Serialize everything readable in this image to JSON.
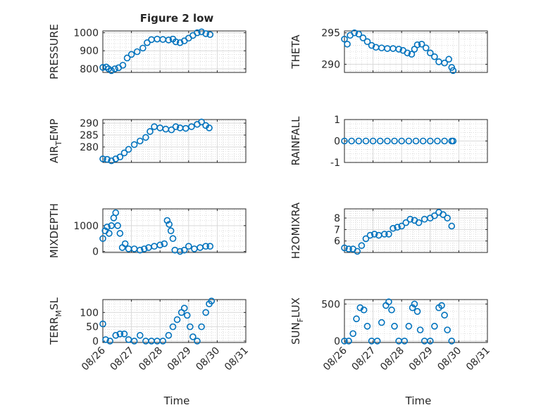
{
  "figure": {
    "title": "Figure 2 low",
    "xlabel": "Time",
    "x_tick_labels": [
      "08/26",
      "08/27",
      "08/28",
      "08/29",
      "08/30",
      "08/31"
    ]
  },
  "colors": {
    "series": "#0072BD",
    "axes": "#262626",
    "grid": "#d9d9d9"
  },
  "chart_data": [
    {
      "type": "scatter",
      "ylabel": "PRESSURE",
      "yticks": [
        800,
        900,
        1000
      ],
      "ylim": [
        780,
        1010
      ],
      "xlim": [
        0,
        5
      ],
      "points": [
        [
          0,
          808
        ],
        [
          0.12,
          810
        ],
        [
          0.2,
          800
        ],
        [
          0.3,
          790
        ],
        [
          0.42,
          800
        ],
        [
          0.55,
          806
        ],
        [
          0.7,
          820
        ],
        [
          0.85,
          860
        ],
        [
          1.0,
          880
        ],
        [
          1.2,
          895
        ],
        [
          1.4,
          915
        ],
        [
          1.55,
          945
        ],
        [
          1.7,
          962
        ],
        [
          1.9,
          965
        ],
        [
          2.1,
          963
        ],
        [
          2.3,
          960
        ],
        [
          2.45,
          965
        ],
        [
          2.55,
          950
        ],
        [
          2.7,
          945
        ],
        [
          2.85,
          955
        ],
        [
          3.0,
          970
        ],
        [
          3.15,
          985
        ],
        [
          3.3,
          1000
        ],
        [
          3.45,
          1005
        ],
        [
          3.6,
          995
        ],
        [
          3.75,
          990
        ]
      ]
    },
    {
      "type": "scatter",
      "ylabel": "THETA",
      "yticks": [
        290,
        295
      ],
      "ylim": [
        288.7,
        295.3
      ],
      "xlim": [
        0,
        5
      ],
      "points": [
        [
          0,
          294.0
        ],
        [
          0.1,
          293.2
        ],
        [
          0.2,
          294.6
        ],
        [
          0.35,
          295.0
        ],
        [
          0.5,
          294.8
        ],
        [
          0.65,
          294.2
        ],
        [
          0.8,
          293.6
        ],
        [
          0.95,
          293.0
        ],
        [
          1.1,
          292.7
        ],
        [
          1.3,
          292.6
        ],
        [
          1.5,
          292.5
        ],
        [
          1.7,
          292.5
        ],
        [
          1.9,
          292.4
        ],
        [
          2.05,
          292.2
        ],
        [
          2.2,
          291.8
        ],
        [
          2.35,
          291.6
        ],
        [
          2.45,
          292.4
        ],
        [
          2.55,
          293.1
        ],
        [
          2.7,
          293.2
        ],
        [
          2.85,
          292.6
        ],
        [
          3.0,
          291.8
        ],
        [
          3.15,
          291.2
        ],
        [
          3.3,
          290.4
        ],
        [
          3.5,
          290.2
        ],
        [
          3.65,
          290.8
        ],
        [
          3.75,
          289.5
        ],
        [
          3.8,
          289.0
        ]
      ]
    },
    {
      "type": "scatter",
      "ylabel": "AIR_TEMP",
      "yticks": [
        280,
        285,
        290
      ],
      "ylim": [
        273.5,
        291.5
      ],
      "xlim": [
        0,
        5
      ],
      "points": [
        [
          0,
          275.0
        ],
        [
          0.15,
          274.8
        ],
        [
          0.3,
          274.2
        ],
        [
          0.45,
          275.0
        ],
        [
          0.6,
          275.8
        ],
        [
          0.75,
          277.5
        ],
        [
          0.9,
          279.0
        ],
        [
          1.1,
          281.0
        ],
        [
          1.3,
          282.5
        ],
        [
          1.5,
          284.0
        ],
        [
          1.65,
          286.5
        ],
        [
          1.8,
          288.5
        ],
        [
          2.0,
          288.0
        ],
        [
          2.2,
          287.5
        ],
        [
          2.4,
          287.2
        ],
        [
          2.55,
          288.5
        ],
        [
          2.7,
          288.0
        ],
        [
          2.9,
          287.8
        ],
        [
          3.1,
          288.5
        ],
        [
          3.3,
          289.5
        ],
        [
          3.45,
          290.5
        ],
        [
          3.6,
          289.0
        ],
        [
          3.72,
          288.0
        ]
      ]
    },
    {
      "type": "scatter",
      "ylabel": "RAINFALL",
      "yticks": [
        -1,
        0,
        1
      ],
      "ylim": [
        -1,
        1
      ],
      "xlim": [
        0,
        5
      ],
      "points": [
        [
          0,
          0
        ],
        [
          0.25,
          0
        ],
        [
          0.5,
          0
        ],
        [
          0.75,
          0
        ],
        [
          1.0,
          0
        ],
        [
          1.25,
          0
        ],
        [
          1.5,
          0
        ],
        [
          1.75,
          0
        ],
        [
          2.0,
          0
        ],
        [
          2.25,
          0
        ],
        [
          2.5,
          0
        ],
        [
          2.75,
          0
        ],
        [
          3.0,
          0
        ],
        [
          3.25,
          0
        ],
        [
          3.5,
          0
        ],
        [
          3.75,
          0
        ],
        [
          3.8,
          0
        ]
      ]
    },
    {
      "type": "scatter",
      "ylabel": "MIXDEPTH",
      "yticks": [
        0,
        1000
      ],
      "ylim": [
        -40,
        1650
      ],
      "xlim": [
        0,
        5
      ],
      "points": [
        [
          0,
          500
        ],
        [
          0.08,
          800
        ],
        [
          0.15,
          950
        ],
        [
          0.22,
          700
        ],
        [
          0.3,
          1000
        ],
        [
          0.38,
          1300
        ],
        [
          0.45,
          1500
        ],
        [
          0.52,
          1000
        ],
        [
          0.6,
          700
        ],
        [
          0.68,
          150
        ],
        [
          0.78,
          300
        ],
        [
          0.9,
          100
        ],
        [
          1.1,
          100
        ],
        [
          1.3,
          50
        ],
        [
          1.45,
          100
        ],
        [
          1.6,
          150
        ],
        [
          1.8,
          200
        ],
        [
          2.0,
          250
        ],
        [
          2.15,
          300
        ],
        [
          2.25,
          1200
        ],
        [
          2.32,
          1050
        ],
        [
          2.38,
          800
        ],
        [
          2.45,
          500
        ],
        [
          2.52,
          50
        ],
        [
          2.7,
          0
        ],
        [
          2.85,
          50
        ],
        [
          3.0,
          200
        ],
        [
          3.2,
          100
        ],
        [
          3.4,
          150
        ],
        [
          3.6,
          200
        ],
        [
          3.75,
          200
        ]
      ]
    },
    {
      "type": "scatter",
      "ylabel": "H2OMIXRA",
      "yticks": [
        6,
        7,
        8
      ],
      "ylim": [
        5.0,
        8.8
      ],
      "xlim": [
        0,
        5
      ],
      "points": [
        [
          0,
          5.4
        ],
        [
          0.15,
          5.3
        ],
        [
          0.3,
          5.3
        ],
        [
          0.45,
          5.1
        ],
        [
          0.6,
          5.6
        ],
        [
          0.75,
          6.2
        ],
        [
          0.9,
          6.5
        ],
        [
          1.05,
          6.6
        ],
        [
          1.2,
          6.5
        ],
        [
          1.4,
          6.6
        ],
        [
          1.55,
          6.6
        ],
        [
          1.7,
          7.1
        ],
        [
          1.85,
          7.2
        ],
        [
          2.0,
          7.3
        ],
        [
          2.15,
          7.6
        ],
        [
          2.3,
          7.9
        ],
        [
          2.45,
          7.8
        ],
        [
          2.6,
          7.6
        ],
        [
          2.8,
          7.9
        ],
        [
          3.0,
          8.0
        ],
        [
          3.15,
          8.2
        ],
        [
          3.3,
          8.5
        ],
        [
          3.45,
          8.3
        ],
        [
          3.6,
          8.0
        ],
        [
          3.75,
          7.3
        ]
      ]
    },
    {
      "type": "scatter",
      "ylabel": "TERR_MSL",
      "yticks": [
        0,
        50,
        100
      ],
      "ylim": [
        -5,
        145
      ],
      "xlim": [
        0,
        5
      ],
      "points": [
        [
          0,
          60
        ],
        [
          0.1,
          5
        ],
        [
          0.25,
          0
        ],
        [
          0.45,
          20
        ],
        [
          0.6,
          25
        ],
        [
          0.75,
          25
        ],
        [
          0.9,
          5
        ],
        [
          1.1,
          0
        ],
        [
          1.3,
          20
        ],
        [
          1.5,
          0
        ],
        [
          1.7,
          0
        ],
        [
          1.9,
          0
        ],
        [
          2.1,
          0
        ],
        [
          2.3,
          20
        ],
        [
          2.45,
          50
        ],
        [
          2.6,
          75
        ],
        [
          2.75,
          100
        ],
        [
          2.85,
          115
        ],
        [
          2.95,
          90
        ],
        [
          3.05,
          50
        ],
        [
          3.15,
          15
        ],
        [
          3.3,
          0
        ],
        [
          3.45,
          50
        ],
        [
          3.6,
          100
        ],
        [
          3.72,
          130
        ],
        [
          3.8,
          140
        ]
      ]
    },
    {
      "type": "scatter",
      "ylabel": "SUN_FLUX",
      "yticks": [
        0,
        500
      ],
      "ylim": [
        -20,
        560
      ],
      "xlim": [
        0,
        5
      ],
      "points": [
        [
          0,
          0
        ],
        [
          0.15,
          0
        ],
        [
          0.3,
          100
        ],
        [
          0.42,
          300
        ],
        [
          0.55,
          450
        ],
        [
          0.68,
          420
        ],
        [
          0.8,
          200
        ],
        [
          0.95,
          0
        ],
        [
          1.15,
          0
        ],
        [
          1.3,
          250
        ],
        [
          1.45,
          480
        ],
        [
          1.55,
          530
        ],
        [
          1.65,
          420
        ],
        [
          1.75,
          200
        ],
        [
          1.9,
          0
        ],
        [
          2.1,
          0
        ],
        [
          2.25,
          200
        ],
        [
          2.38,
          450
        ],
        [
          2.45,
          500
        ],
        [
          2.55,
          400
        ],
        [
          2.65,
          150
        ],
        [
          2.8,
          0
        ],
        [
          3.0,
          0
        ],
        [
          3.15,
          200
        ],
        [
          3.3,
          450
        ],
        [
          3.4,
          480
        ],
        [
          3.5,
          350
        ],
        [
          3.6,
          150
        ],
        [
          3.75,
          0
        ]
      ]
    }
  ]
}
